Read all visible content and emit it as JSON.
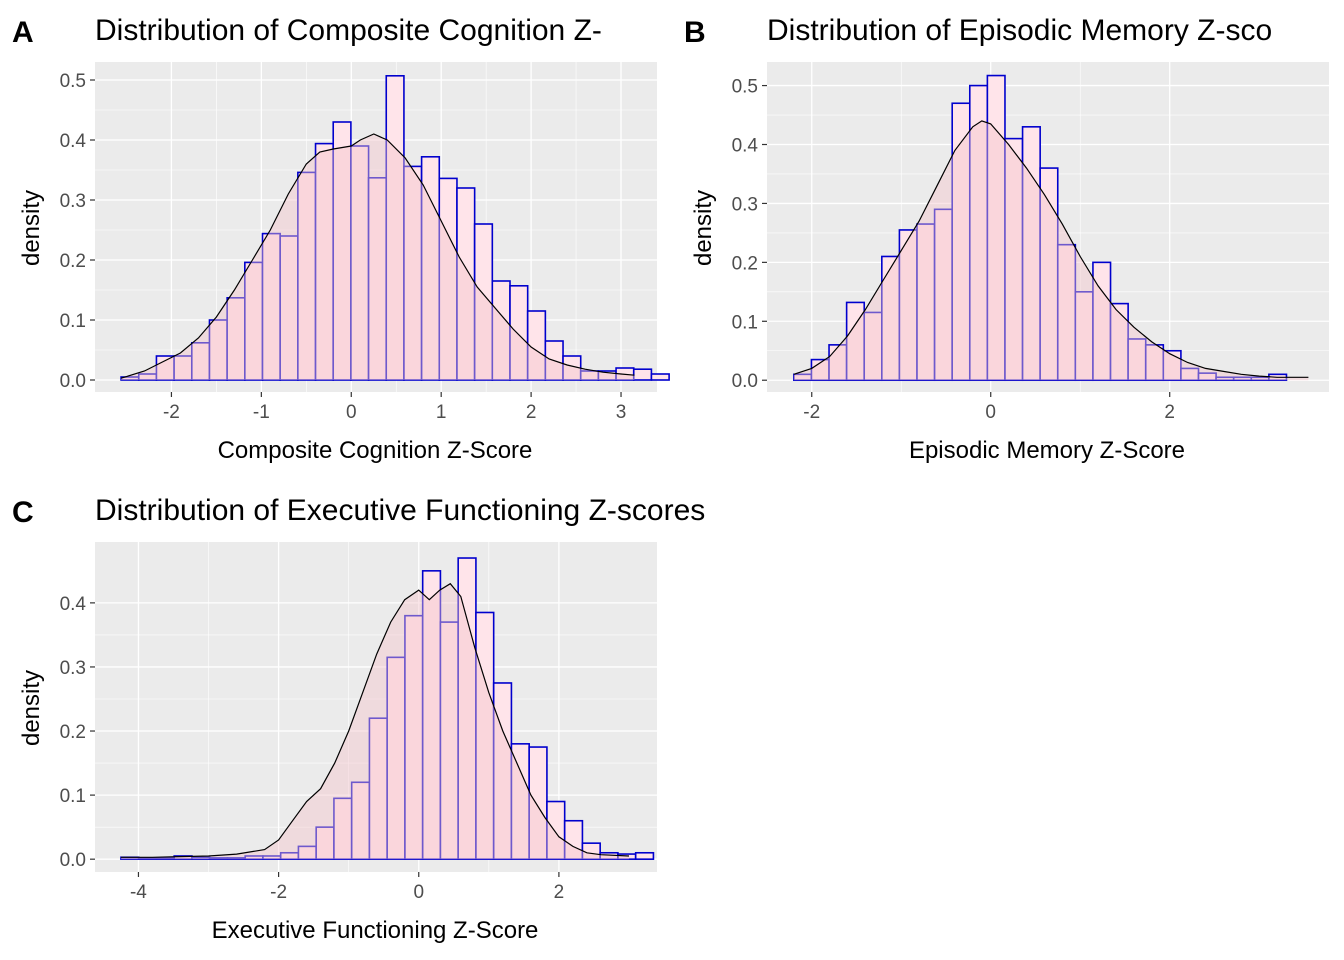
{
  "chart_data": [
    {
      "tag": "A",
      "type": "bar",
      "subtype": "histogram-with-density",
      "title": "Distribution of Composite Cognition Z-",
      "xlabel": "Composite Cognition Z-Score",
      "ylabel": "density",
      "xlim": [
        -2.85,
        3.4
      ],
      "ylim": [
        -0.02,
        0.53
      ],
      "xticks": [
        "-2",
        "-1",
        "0",
        "1",
        "2",
        "3"
      ],
      "yticks": [
        "0.0",
        "0.1",
        "0.2",
        "0.3",
        "0.4",
        "0.5"
      ],
      "grid": true,
      "bin_start": -2.56,
      "bin_width": 0.1966,
      "values": [
        0.005,
        0.01,
        0.04,
        0.04,
        0.062,
        0.1,
        0.137,
        0.196,
        0.244,
        0.24,
        0.346,
        0.394,
        0.43,
        0.39,
        0.337,
        0.507,
        0.356,
        0.372,
        0.336,
        0.32,
        0.26,
        0.165,
        0.157,
        0.115,
        0.065,
        0.04,
        0.015,
        0.015,
        0.02,
        0.018,
        0.01
      ],
      "density": {
        "x": [
          -2.56,
          -2.3,
          -2.1,
          -1.9,
          -1.7,
          -1.5,
          -1.3,
          -1.1,
          -0.9,
          -0.7,
          -0.5,
          -0.35,
          -0.2,
          0.0,
          0.1,
          0.25,
          0.4,
          0.6,
          0.8,
          1.0,
          1.2,
          1.4,
          1.6,
          1.8,
          2.0,
          2.2,
          2.4,
          2.6,
          2.8,
          3.0,
          3.15
        ],
        "y": [
          0.003,
          0.015,
          0.03,
          0.045,
          0.07,
          0.105,
          0.15,
          0.2,
          0.25,
          0.31,
          0.36,
          0.38,
          0.385,
          0.39,
          0.4,
          0.41,
          0.4,
          0.37,
          0.325,
          0.265,
          0.205,
          0.155,
          0.12,
          0.085,
          0.055,
          0.035,
          0.025,
          0.018,
          0.013,
          0.01,
          0.008
        ]
      },
      "bar_fill": "#ffe4ea",
      "bar_outline": "#0000cd",
      "density_fill": "#f4c6cc",
      "density_line": "#000000",
      "panel_bg": "#ebebeb"
    },
    {
      "tag": "B",
      "type": "bar",
      "subtype": "histogram-with-density",
      "title": "Distribution of Episodic Memory Z-sco",
      "xlabel": "Episodic Memory Z-Score",
      "ylabel": "density",
      "xlim": [
        -2.5,
        3.78
      ],
      "ylim": [
        -0.02,
        0.54
      ],
      "xticks": [
        "-2",
        "0",
        "2"
      ],
      "yticks": [
        "0.0",
        "0.1",
        "0.2",
        "0.3",
        "0.4",
        "0.5"
      ],
      "grid": true,
      "bin_start": -2.2,
      "bin_width": 0.1966,
      "values": [
        0.01,
        0.035,
        0.06,
        0.132,
        0.115,
        0.21,
        0.255,
        0.265,
        0.29,
        0.47,
        0.5,
        0.517,
        0.41,
        0.43,
        0.36,
        0.23,
        0.15,
        0.2,
        0.13,
        0.07,
        0.06,
        0.05,
        0.02,
        0.012,
        0.005,
        0.005,
        0.005,
        0.01
      ],
      "density": {
        "x": [
          -2.2,
          -2.0,
          -1.8,
          -1.6,
          -1.4,
          -1.2,
          -1.0,
          -0.8,
          -0.6,
          -0.4,
          -0.2,
          -0.1,
          0.0,
          0.2,
          0.4,
          0.6,
          0.8,
          1.0,
          1.2,
          1.4,
          1.6,
          1.8,
          2.0,
          2.2,
          2.4,
          2.6,
          2.8,
          3.0,
          3.2,
          3.4,
          3.55
        ],
        "y": [
          0.01,
          0.02,
          0.04,
          0.075,
          0.12,
          0.17,
          0.22,
          0.27,
          0.33,
          0.39,
          0.43,
          0.44,
          0.435,
          0.4,
          0.36,
          0.315,
          0.265,
          0.21,
          0.16,
          0.12,
          0.09,
          0.065,
          0.045,
          0.03,
          0.02,
          0.015,
          0.01,
          0.007,
          0.005,
          0.005,
          0.005
        ]
      },
      "bar_fill": "#ffe4ea",
      "bar_outline": "#0000cd",
      "density_fill": "#f4c6cc",
      "density_line": "#000000",
      "panel_bg": "#ebebeb"
    },
    {
      "tag": "C",
      "type": "bar",
      "subtype": "histogram-with-density",
      "title": "Distribution of Executive Functioning Z-scores",
      "xlabel": "Executive Functioning Z-Score",
      "ylabel": "density",
      "xlim": [
        -4.62,
        3.4
      ],
      "ylim": [
        -0.02,
        0.495
      ],
      "xticks": [
        "-4",
        "-2",
        "0",
        "2"
      ],
      "yticks": [
        "0.0",
        "0.1",
        "0.2",
        "0.3",
        "0.4"
      ],
      "grid": true,
      "bin_start": -4.25,
      "bin_width": 0.2533,
      "values": [
        0.003,
        0.002,
        0.002,
        0.005,
        0.003,
        0.002,
        0.002,
        0.005,
        0.005,
        0.01,
        0.02,
        0.05,
        0.095,
        0.12,
        0.22,
        0.315,
        0.38,
        0.45,
        0.37,
        0.47,
        0.385,
        0.275,
        0.18,
        0.175,
        0.09,
        0.06,
        0.025,
        0.01,
        0.008,
        0.01
      ],
      "density": {
        "x": [
          -4.25,
          -3.8,
          -3.4,
          -3.0,
          -2.6,
          -2.2,
          -2.0,
          -1.8,
          -1.6,
          -1.4,
          -1.2,
          -1.0,
          -0.8,
          -0.6,
          -0.4,
          -0.2,
          0.0,
          0.15,
          0.3,
          0.45,
          0.6,
          0.8,
          1.0,
          1.2,
          1.4,
          1.6,
          1.8,
          2.0,
          2.2,
          2.4,
          2.6,
          3.0
        ],
        "y": [
          0.003,
          0.003,
          0.004,
          0.005,
          0.008,
          0.015,
          0.03,
          0.06,
          0.09,
          0.11,
          0.15,
          0.2,
          0.26,
          0.32,
          0.37,
          0.405,
          0.42,
          0.405,
          0.42,
          0.43,
          0.41,
          0.33,
          0.26,
          0.2,
          0.15,
          0.1,
          0.065,
          0.035,
          0.02,
          0.01,
          0.007,
          0.005
        ]
      },
      "bar_fill": "#ffe4ea",
      "bar_outline": "#0000cd",
      "density_fill": "#f4c6cc",
      "density_line": "#000000",
      "panel_bg": "#ebebeb"
    }
  ]
}
